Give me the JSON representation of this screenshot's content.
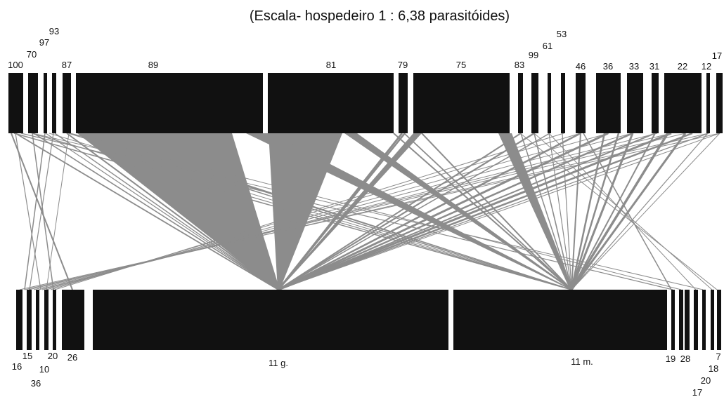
{
  "title": "(Escala- hospedeiro 1 : 6,38 parasitóides)",
  "top_row": {
    "labels": [
      "100",
      "70",
      "97",
      "93",
      "87",
      "89",
      "81",
      "79",
      "75",
      "83",
      "99",
      "61",
      "53",
      "46",
      "36",
      "33",
      "31",
      "22",
      "12",
      "17"
    ]
  },
  "bottom_row": {
    "labels": [
      "16",
      "15",
      "36",
      "10",
      "20",
      "26",
      "11 g.",
      "11 m.",
      "19",
      "28",
      "7",
      "18",
      "20",
      "17"
    ]
  },
  "colors": {
    "bar": "#111111",
    "link": "#8c8c8c",
    "background": "#ffffff"
  }
}
